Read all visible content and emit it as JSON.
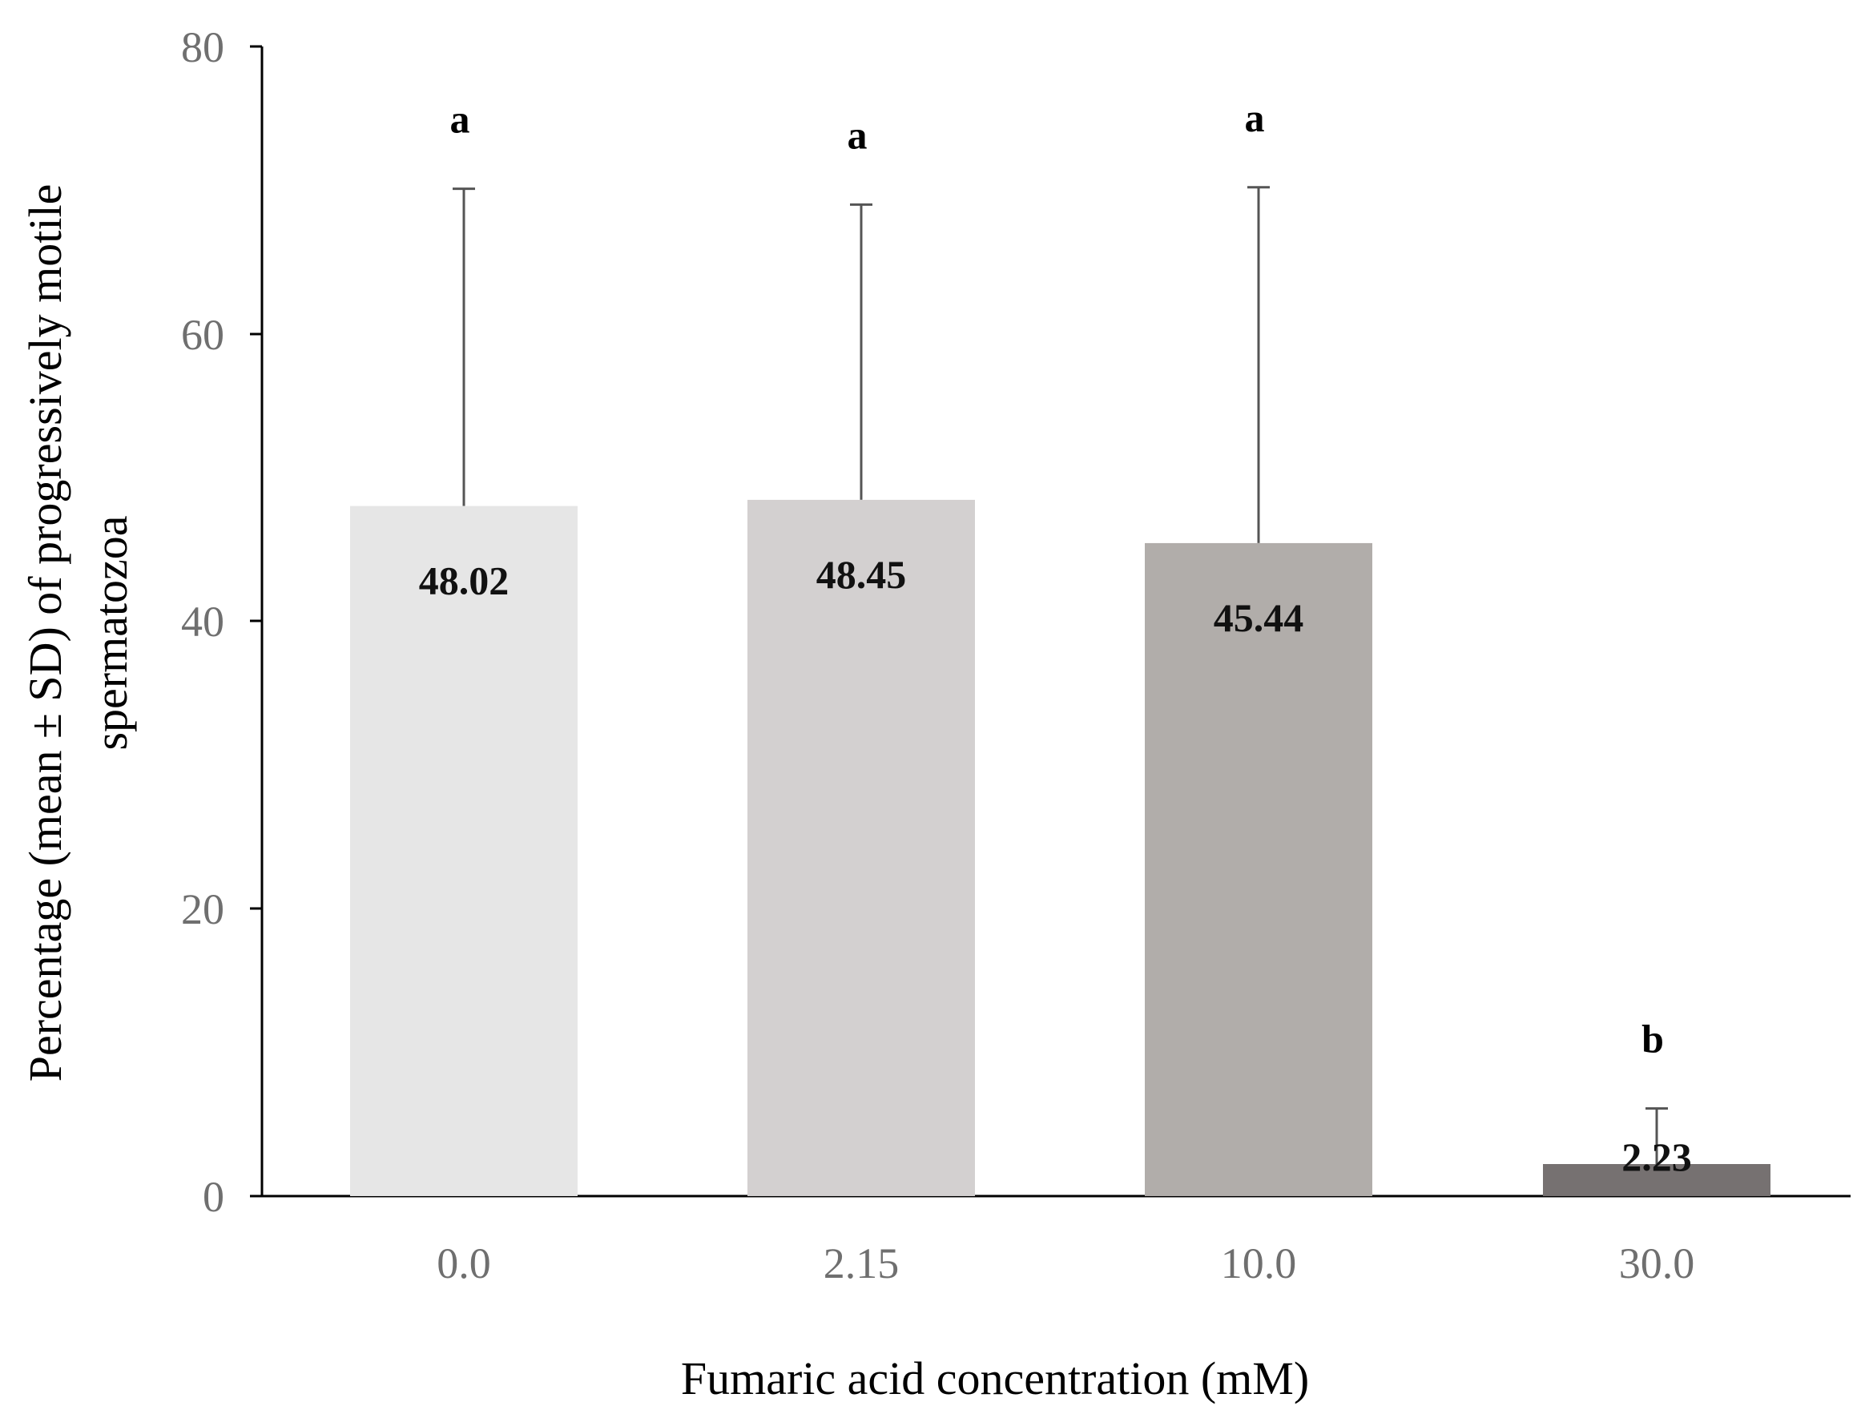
{
  "chart_data": {
    "type": "bar",
    "title": "",
    "xlabel": "Fumaric acid concentration (mM)",
    "ylabel_line1": "Percentage (mean ± SD) of progressively motile",
    "ylabel_line2": "spermatozoa",
    "categories": [
      "0.0",
      "2.15",
      "10.0",
      "30.0"
    ],
    "values": [
      48.02,
      48.45,
      45.44,
      2.23
    ],
    "value_labels": [
      "48.02",
      "48.45",
      "45.44",
      "2.23"
    ],
    "error_upper": [
      70.1,
      69.0,
      70.2,
      6.1
    ],
    "significance": [
      "a",
      "a",
      "a",
      "b"
    ],
    "bar_colors": [
      "#e6e6e6",
      "#d3d0d0",
      "#b1adaa",
      "#767171"
    ],
    "ylim": [
      0,
      80
    ],
    "yticks": [
      "0",
      "20",
      "40",
      "60",
      "80"
    ],
    "grid": false,
    "legend": "none"
  }
}
